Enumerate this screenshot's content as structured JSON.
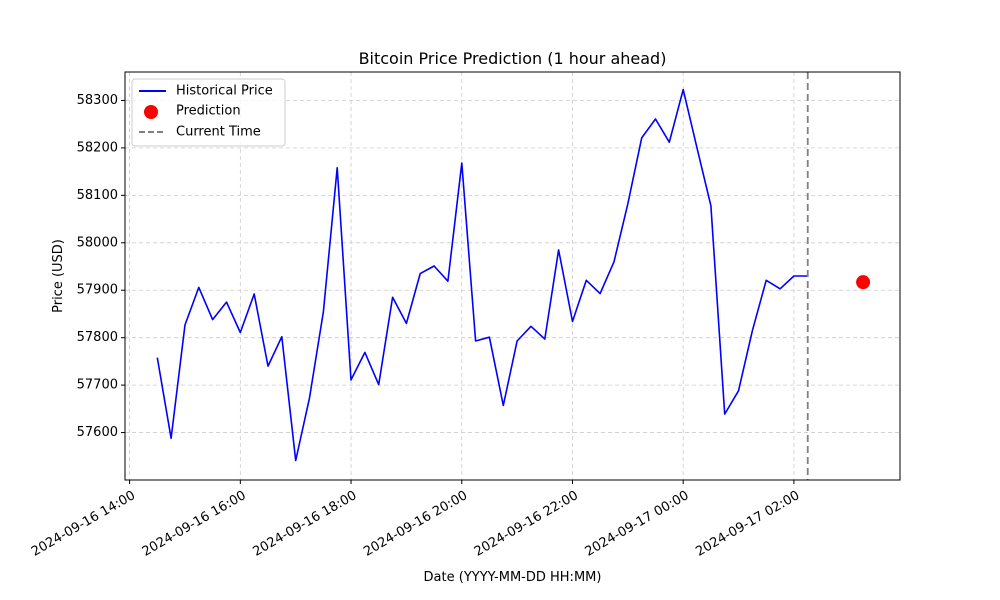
{
  "chart_data": {
    "type": "line",
    "title": "Bitcoin Price Prediction (1 hour ahead)",
    "xlabel": "Date (YYYY-MM-DD HH:MM)",
    "ylabel": "Price (USD)",
    "xlim": [
      "2024-09-16 13:55",
      "2024-09-17 03:55"
    ],
    "ylim": [
      57500,
      58360
    ],
    "x_ticks": [
      "2024-09-16 14:00",
      "2024-09-16 16:00",
      "2024-09-16 18:00",
      "2024-09-16 20:00",
      "2024-09-16 22:00",
      "2024-09-17 00:00",
      "2024-09-17 02:00"
    ],
    "y_ticks": [
      57600,
      57700,
      57800,
      57900,
      58000,
      58100,
      58200,
      58300
    ],
    "grid": true,
    "legend_position": "top-left",
    "series": [
      {
        "name": "Historical Price",
        "color": "#0000ff",
        "x": [
          "2024-09-16 14:30",
          "2024-09-16 14:45",
          "2024-09-16 15:00",
          "2024-09-16 15:15",
          "2024-09-16 15:30",
          "2024-09-16 15:45",
          "2024-09-16 16:00",
          "2024-09-16 16:15",
          "2024-09-16 16:30",
          "2024-09-16 16:45",
          "2024-09-16 17:00",
          "2024-09-16 17:15",
          "2024-09-16 17:30",
          "2024-09-16 17:45",
          "2024-09-16 18:00",
          "2024-09-16 18:15",
          "2024-09-16 18:30",
          "2024-09-16 18:45",
          "2024-09-16 19:00",
          "2024-09-16 19:15",
          "2024-09-16 19:30",
          "2024-09-16 19:45",
          "2024-09-16 20:00",
          "2024-09-16 20:15",
          "2024-09-16 20:30",
          "2024-09-16 20:45",
          "2024-09-16 21:00",
          "2024-09-16 21:15",
          "2024-09-16 21:30",
          "2024-09-16 21:45",
          "2024-09-16 22:00",
          "2024-09-16 22:15",
          "2024-09-16 22:30",
          "2024-09-16 22:45",
          "2024-09-16 23:00",
          "2024-09-16 23:15",
          "2024-09-16 23:30",
          "2024-09-16 23:45",
          "2024-09-17 00:00",
          "2024-09-17 00:15",
          "2024-09-17 00:30",
          "2024-09-17 00:45",
          "2024-09-17 01:00",
          "2024-09-17 01:15",
          "2024-09-17 01:30",
          "2024-09-17 01:45",
          "2024-09-17 02:00",
          "2024-09-17 02:15"
        ],
        "values": [
          57758,
          57588,
          57827,
          57906,
          57838,
          57875,
          57811,
          57892,
          57740,
          57802,
          57541,
          57673,
          57855,
          58158,
          57711,
          57769,
          57701,
          57885,
          57830,
          57935,
          57951,
          57919,
          58168,
          57793,
          57801,
          57657,
          57793,
          57824,
          57797,
          57985,
          57834,
          57921,
          57893,
          57960,
          58082,
          58221,
          58261,
          58212,
          58323,
          58200,
          58078,
          57639,
          57688,
          57815,
          57921,
          57903,
          57930,
          57930
        ]
      }
    ],
    "prediction": {
      "name": "Prediction",
      "color": "#ff0000",
      "x": "2024-09-17 03:15",
      "value": 57917
    },
    "current_time": {
      "name": "Current Time",
      "color": "#808080",
      "x": "2024-09-17 02:15"
    }
  }
}
